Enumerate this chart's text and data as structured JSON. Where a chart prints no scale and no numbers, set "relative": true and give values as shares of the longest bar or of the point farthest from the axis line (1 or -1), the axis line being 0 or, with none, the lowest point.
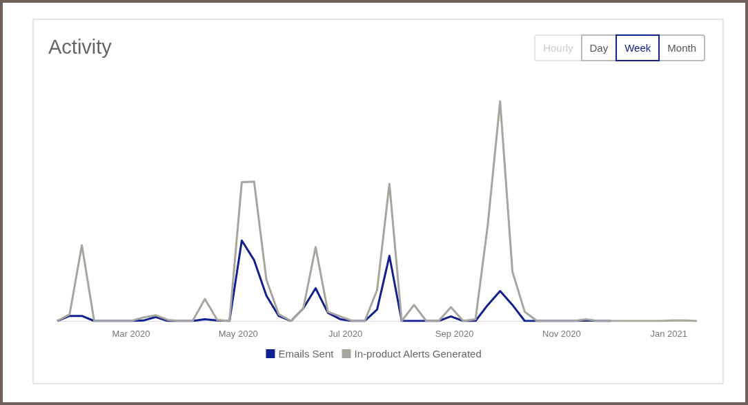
{
  "chart_data": {
    "type": "line",
    "title": "Activity",
    "relative": true,
    "marker": "none",
    "line_style": "solid",
    "grid": false,
    "legend": "bottom",
    "annotations": [
      "Hourly",
      "Day",
      "Week",
      "Month"
    ],
    "x": [
      "2020-01-19",
      "2020-01-26",
      "2020-02-02",
      "2020-02-09",
      "2020-02-16",
      "2020-02-23",
      "2020-03-01",
      "2020-03-08",
      "2020-03-15",
      "2020-03-22",
      "2020-03-29",
      "2020-04-05",
      "2020-04-12",
      "2020-04-19",
      "2020-04-26",
      "2020-05-03",
      "2020-05-10",
      "2020-05-17",
      "2020-05-24",
      "2020-05-31",
      "2020-06-07",
      "2020-06-14",
      "2020-06-21",
      "2020-06-28",
      "2020-07-05",
      "2020-07-12",
      "2020-07-19",
      "2020-07-26",
      "2020-08-02",
      "2020-08-09",
      "2020-08-16",
      "2020-08-23",
      "2020-08-30",
      "2020-09-06",
      "2020-09-13",
      "2020-09-20",
      "2020-09-27",
      "2020-10-04",
      "2020-10-11",
      "2020-10-18",
      "2020-10-25",
      "2020-11-01",
      "2020-11-08",
      "2020-11-15",
      "2020-11-22",
      "2020-11-29",
      "2020-12-06",
      "2020-12-13",
      "2020-12-20",
      "2020-12-27",
      "2021-01-03",
      "2021-01-10",
      "2021-01-17"
    ],
    "xlim": [
      "2020-01-19",
      "2021-01-17"
    ],
    "xticks": [
      {
        "value": "2020-03-01",
        "label": "Mar 2020"
      },
      {
        "value": "2020-05-01",
        "label": "May 2020"
      },
      {
        "value": "2020-07-01",
        "label": "Jul 2020"
      },
      {
        "value": "2020-09-01",
        "label": "Sep 2020"
      },
      {
        "value": "2020-11-01",
        "label": "Nov 2020"
      },
      {
        "value": "2021-01-01",
        "label": "Jan 2021"
      }
    ],
    "series": [
      {
        "name": "Emails Sent",
        "color": "#11208f",
        "values": [
          0,
          0.023,
          0.023,
          0,
          0,
          0,
          0,
          0.002,
          0.018,
          0,
          0,
          0,
          0.008,
          0.002,
          0,
          0.366,
          0.277,
          0.115,
          0.023,
          0,
          0.057,
          0.149,
          0.037,
          0.008,
          0,
          0,
          0.052,
          0.296,
          0,
          0,
          0,
          0,
          0.021,
          0,
          0,
          0.073,
          0.136,
          0.073,
          0,
          0,
          0,
          0,
          0,
          0.002,
          0,
          0,
          null,
          null,
          null,
          null,
          null,
          null,
          null
        ]
      },
      {
        "name": "In-product Alerts Generated",
        "color": "#a6a69e",
        "values": [
          0,
          0.03,
          0.345,
          0,
          0,
          0,
          0,
          0.016,
          0.026,
          0.005,
          0,
          0,
          0.1,
          0.005,
          0,
          0.632,
          0.634,
          0.188,
          0.031,
          0,
          0.057,
          0.336,
          0.042,
          0.021,
          0,
          0,
          0.141,
          0.624,
          0,
          0.073,
          0,
          0,
          0.063,
          0,
          0.008,
          0.439,
          1,
          0.225,
          0.042,
          0,
          0,
          0,
          0,
          0.008,
          0,
          0,
          0,
          0,
          0,
          0,
          0.002,
          0.002,
          0
        ]
      }
    ]
  }
}
